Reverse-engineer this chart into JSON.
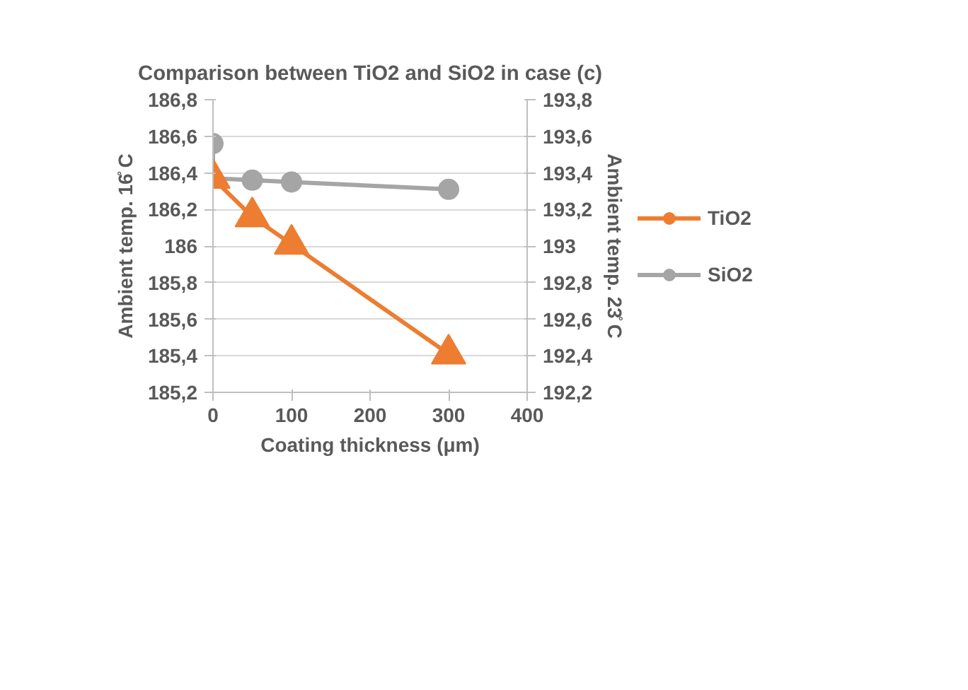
{
  "chart_data": {
    "type": "line",
    "title": "Comparison between TiO2 and SiO2 in case (c)",
    "xlabel": "Coating thickness (μm)",
    "ylabel": "Ambient temp. 16̊ C",
    "y2label": "Ambient temp. 23̊ C",
    "xlim": [
      0,
      400
    ],
    "xticks": [
      0,
      100,
      200,
      300,
      400
    ],
    "ylim": [
      185.2,
      186.8
    ],
    "yticks": [
      {
        "value": 185.2,
        "label": "185,2"
      },
      {
        "value": 185.4,
        "label": "185,4"
      },
      {
        "value": 185.6,
        "label": "185,6"
      },
      {
        "value": 185.8,
        "label": "185,8"
      },
      {
        "value": 186,
        "label": "186"
      },
      {
        "value": 186.2,
        "label": "186,2"
      },
      {
        "value": 186.4,
        "label": "186,4"
      },
      {
        "value": 186.6,
        "label": "186,6"
      },
      {
        "value": 186.8,
        "label": "186,8"
      }
    ],
    "y2lim": [
      192.2,
      193.8
    ],
    "y2ticks": [
      {
        "value": 192.2,
        "label": "192,2"
      },
      {
        "value": 192.4,
        "label": "192,4"
      },
      {
        "value": 192.6,
        "label": "192,6"
      },
      {
        "value": 192.8,
        "label": "192,8"
      },
      {
        "value": 193,
        "label": "193"
      },
      {
        "value": 193.2,
        "label": "193,2"
      },
      {
        "value": 193.4,
        "label": "193,4"
      },
      {
        "value": 193.6,
        "label": "193,6"
      },
      {
        "value": 193.8,
        "label": "193,8"
      }
    ],
    "series": [
      {
        "name": "TiO2",
        "color": "#ed7d31",
        "marker": "triangle",
        "x": [
          0,
          50,
          100,
          300
        ],
        "values": [
          186.37,
          186.16,
          186.01,
          185.41
        ]
      },
      {
        "name": "SiO2",
        "color": "#a5a5a5",
        "marker": "circle",
        "axis": "y2",
        "x": [
          0,
          0,
          50,
          100,
          300
        ],
        "values": [
          193.56,
          193.37,
          193.36,
          193.35,
          193.31
        ]
      }
    ],
    "grid": "y",
    "legend": "right",
    "line_style": "solid"
  }
}
